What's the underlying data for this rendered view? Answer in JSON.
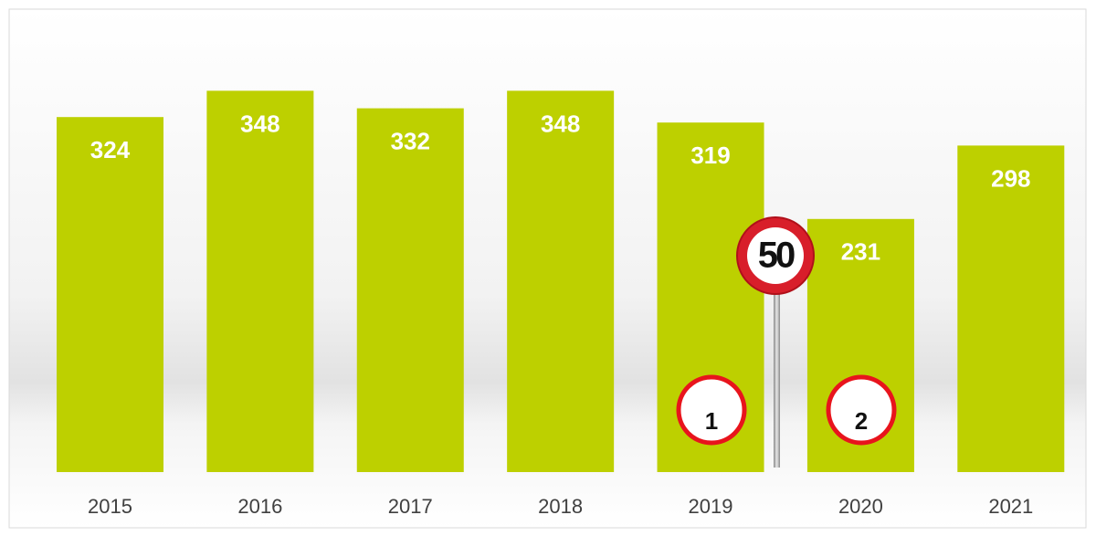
{
  "chart_data": {
    "type": "bar",
    "categories": [
      "2015",
      "2016",
      "2017",
      "2018",
      "2019",
      "2020",
      "2021"
    ],
    "values": [
      324,
      348,
      332,
      348,
      319,
      231,
      298
    ],
    "color": "#bdd000",
    "ylim": [
      0,
      400
    ],
    "grid": false,
    "annotations": [
      "50",
      "1",
      "2"
    ]
  }
}
